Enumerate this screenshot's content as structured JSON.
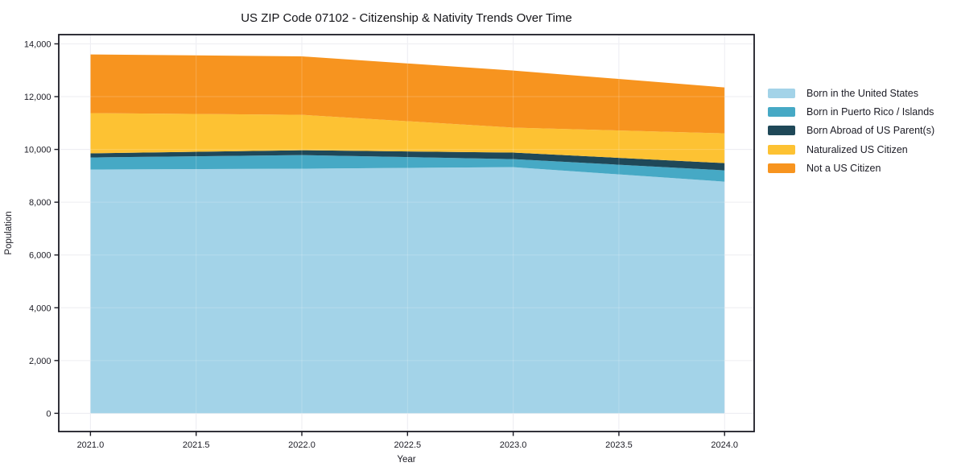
{
  "chart_data": {
    "type": "area",
    "stacked": true,
    "title": "US ZIP Code 07102 - Citizenship & Nativity Trends Over Time",
    "xlabel": "Year",
    "ylabel": "Population",
    "x": [
      2021,
      2022,
      2023,
      2024
    ],
    "series": [
      {
        "name": "Born in the United States",
        "color": "#a3d3e8",
        "values": [
          9240,
          9270,
          9330,
          8780
        ]
      },
      {
        "name": "Born in Puerto Rico / Islands",
        "color": "#46a9c5",
        "values": [
          455,
          515,
          305,
          425
        ]
      },
      {
        "name": "Born Abroad of US Parent(s)",
        "color": "#1f4858",
        "values": [
          155,
          185,
          245,
          275
        ]
      },
      {
        "name": "Naturalized US Citizen",
        "color": "#fdc233",
        "values": [
          1525,
          1340,
          945,
          1130
        ]
      },
      {
        "name": "Not a US Citizen",
        "color": "#f7941f",
        "values": [
          2225,
          2215,
          2165,
          1740
        ]
      }
    ],
    "stacked_totals": [
      13600,
      13525,
      12990,
      12350
    ],
    "xlim": [
      2020.85,
      2024.14
    ],
    "ylim": [
      -690,
      14350
    ],
    "x_ticks": [
      {
        "v": 2021.0,
        "label": "2021.0"
      },
      {
        "v": 2021.5,
        "label": "2021.5"
      },
      {
        "v": 2022.0,
        "label": "2022.0"
      },
      {
        "v": 2022.5,
        "label": "2022.5"
      },
      {
        "v": 2023.0,
        "label": "2023.0"
      },
      {
        "v": 2023.5,
        "label": "2023.5"
      },
      {
        "v": 2024.0,
        "label": "2024.0"
      }
    ],
    "y_ticks": [
      {
        "v": 0,
        "label": "0"
      },
      {
        "v": 2000,
        "label": "2,000"
      },
      {
        "v": 4000,
        "label": "4,000"
      },
      {
        "v": 6000,
        "label": "6,000"
      },
      {
        "v": 8000,
        "label": "8,000"
      },
      {
        "v": 10000,
        "label": "10,000"
      },
      {
        "v": 12000,
        "label": "12,000"
      },
      {
        "v": 14000,
        "label": "14,000"
      }
    ],
    "grid": true,
    "legend_position": "right",
    "style": {
      "frame_color": "#1b1b24",
      "grid_color": "#e9e9ef",
      "grid_over_color": "rgba(255,255,255,0.20)",
      "tick_label_color": "#1b1b24",
      "background": "#ffffff"
    }
  }
}
